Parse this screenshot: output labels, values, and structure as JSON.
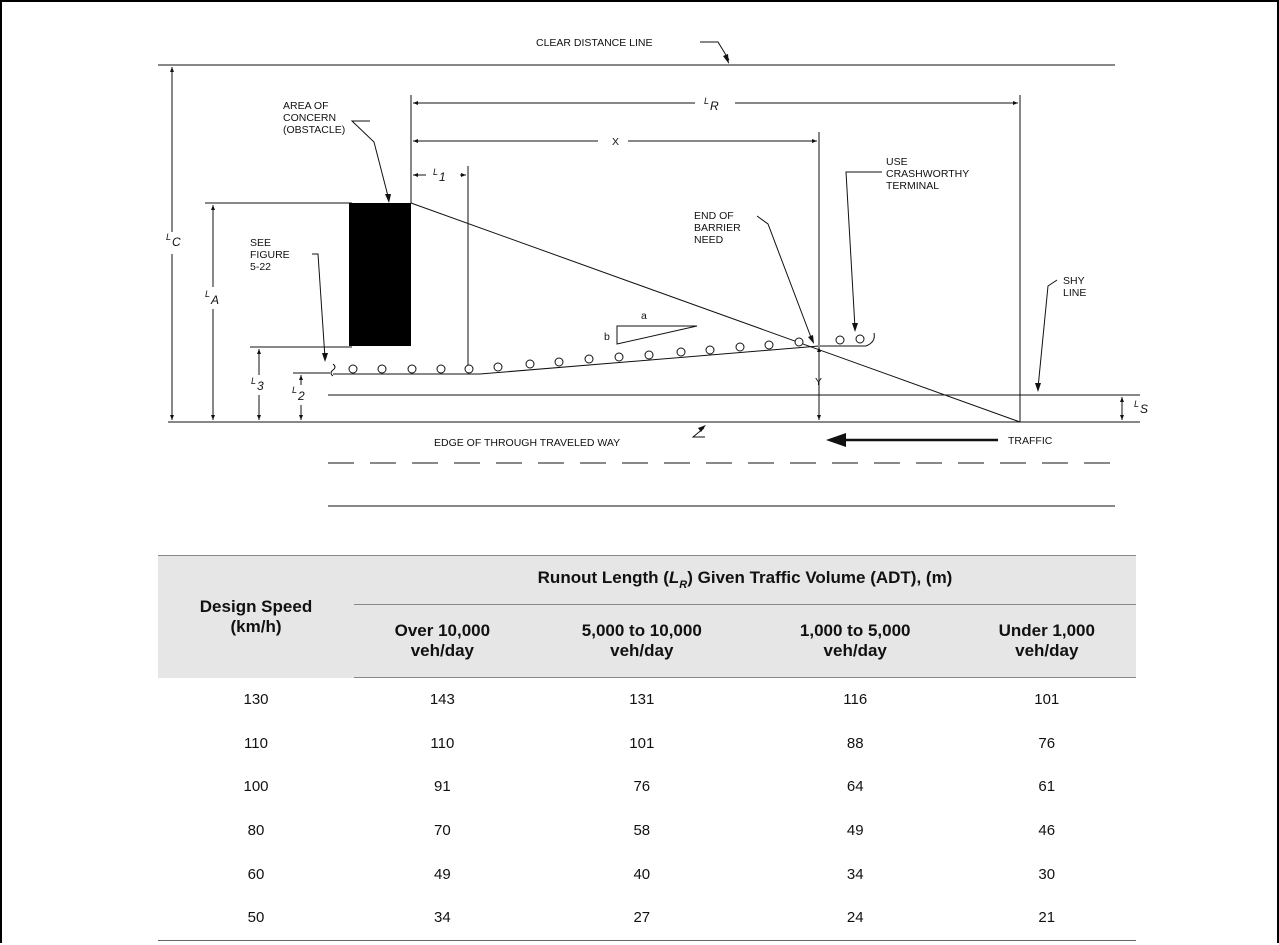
{
  "diagram": {
    "labels": {
      "clear_distance_line": "CLEAR DISTANCE LINE",
      "area_of_concern": [
        "AREA OF",
        "CONCERN",
        "(OBSTACLE)"
      ],
      "see_figure": [
        "SEE",
        "FIGURE",
        "5-22"
      ],
      "use_crashworthy_terminal": [
        "USE",
        "CRASHWORTHY",
        "TERMINAL"
      ],
      "end_of_barrier_need": [
        "END OF",
        "BARRIER",
        "NEED"
      ],
      "shy_line": [
        "SHY",
        "LINE"
      ],
      "edge_of_traveled_way": "EDGE OF THROUGH TRAVELED WAY",
      "traffic": "TRAFFIC",
      "x": "X",
      "y": "Y",
      "flare_a": "a",
      "flare_b": "b"
    },
    "symbols": {
      "LR": {
        "main": "L",
        "sub": "R"
      },
      "L1": {
        "main": "L",
        "sub": "1"
      },
      "LC": {
        "main": "L",
        "sub": "C"
      },
      "LA": {
        "main": "L",
        "sub": "A"
      },
      "L3": {
        "main": "L",
        "sub": "3"
      },
      "L2": {
        "main": "L",
        "sub": "2"
      },
      "LS": {
        "main": "L",
        "sub": "S"
      }
    }
  },
  "table": {
    "row_header": [
      "Design Speed",
      "(km/h)"
    ],
    "group_header": {
      "prefix": "Runout Length (",
      "sym": "L",
      "sub": "R",
      "suffix": ") Given Traffic Volume (ADT), (m)"
    },
    "columns": [
      [
        "Over 10,000",
        "veh/day"
      ],
      [
        "5,000 to 10,000",
        "veh/day"
      ],
      [
        "1,000 to 5,000",
        "veh/day"
      ],
      [
        "Under 1,000",
        "veh/day"
      ]
    ],
    "rows": [
      [
        "130",
        "143",
        "131",
        "116",
        "101"
      ],
      [
        "110",
        "110",
        "101",
        "88",
        "76"
      ],
      [
        "100",
        "91",
        "76",
        "64",
        "61"
      ],
      [
        "80",
        "70",
        "58",
        "49",
        "46"
      ],
      [
        "60",
        "49",
        "40",
        "34",
        "30"
      ],
      [
        "50",
        "34",
        "27",
        "24",
        "21"
      ]
    ]
  }
}
